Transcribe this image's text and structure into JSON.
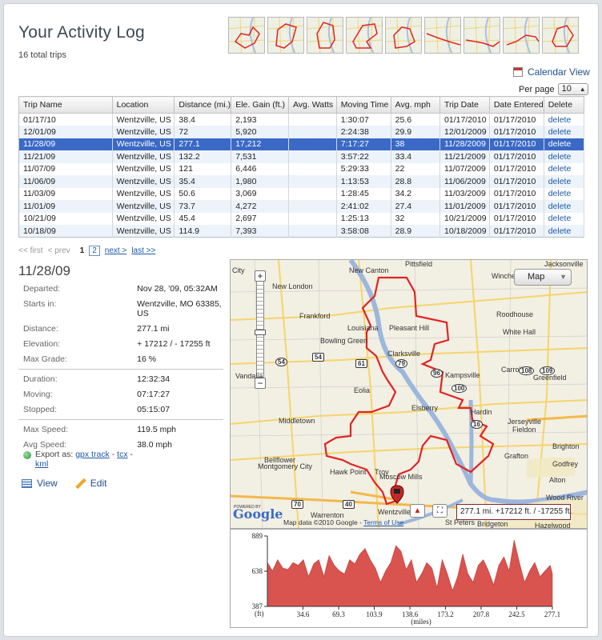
{
  "header": {
    "title": "Your Activity Log",
    "subtitle": "16 total trips",
    "calendar_view": "Calendar View",
    "per_page_label": "Per page",
    "per_page_value": "10",
    "thumbnail_count": 9
  },
  "table": {
    "columns": [
      "Trip Name",
      "Location",
      "Distance (mi.)",
      "Ele. Gain (ft.)",
      "Avg. Watts",
      "Moving Time",
      "Avg. mph",
      "Trip Date",
      "Date Entered",
      "Delete"
    ],
    "rows": [
      [
        "01/17/10",
        "Wentzville, US",
        "38.4",
        "2,193",
        "",
        "1:30:07",
        "25.6",
        "01/17/2010",
        "01/17/2010",
        "delete"
      ],
      [
        "12/01/09",
        "Wentzville, US",
        "72",
        "5,920",
        "",
        "2:24:38",
        "29.9",
        "12/01/2009",
        "01/17/2010",
        "delete"
      ],
      [
        "11/28/09",
        "Wentzville, US",
        "277.1",
        "17,212",
        "",
        "7:17:27",
        "38",
        "11/28/2009",
        "01/17/2010",
        "delete"
      ],
      [
        "11/21/09",
        "Wentzville, US",
        "132.2",
        "7,531",
        "",
        "3:57:22",
        "33.4",
        "11/21/2009",
        "01/17/2010",
        "delete"
      ],
      [
        "11/07/09",
        "Wentzville, US",
        "121",
        "6,446",
        "",
        "5:29:33",
        "22",
        "11/07/2009",
        "01/17/2010",
        "delete"
      ],
      [
        "11/06/09",
        "Wentzville, US",
        "35.4",
        "1,980",
        "",
        "1:13:53",
        "28.8",
        "11/06/2009",
        "01/17/2010",
        "delete"
      ],
      [
        "11/03/09",
        "Wentzville, US",
        "50.6",
        "3,069",
        "",
        "1:28:45",
        "34.2",
        "11/03/2009",
        "01/17/2010",
        "delete"
      ],
      [
        "11/01/09",
        "Wentzville, US",
        "73.7",
        "4,272",
        "",
        "2:41:02",
        "27.4",
        "11/01/2009",
        "01/17/2010",
        "delete"
      ],
      [
        "10/21/09",
        "Wentzville, US",
        "45.4",
        "2,697",
        "",
        "1:25:13",
        "32",
        "10/21/2009",
        "01/17/2010",
        "delete"
      ],
      [
        "10/18/09",
        "Wentzville, US",
        "114.9",
        "7,393",
        "",
        "3:58:08",
        "28.9",
        "10/18/2009",
        "01/17/2010",
        "delete"
      ]
    ],
    "selected_index": 2
  },
  "pager": {
    "first": "<< first",
    "prev": "< prev",
    "current": "1",
    "page2": "2",
    "next": "next >",
    "last": "last >>"
  },
  "detail": {
    "title": "11/28/09",
    "departed_label": "Departed:",
    "departed": "Nov 28, '09, 05:32AM",
    "starts_label": "Starts in:",
    "starts": "Wentzville, MO 63385, US",
    "distance_label": "Distance:",
    "distance": "277.1 mi",
    "elevation_label": "Elevation:",
    "elevation": "+ 17212 / - 17255 ft",
    "maxgrade_label": "Max Grade:",
    "maxgrade": "16 %",
    "duration_label": "Duration:",
    "duration": "12:32:34",
    "moving_label": "Moving:",
    "moving": "07:17:27",
    "stopped_label": "Stopped:",
    "stopped": "05:15:07",
    "maxspeed_label": "Max Speed:",
    "maxspeed": "119.5 mph",
    "avgspeed_label": "Avg Speed:",
    "avgspeed": "38.0 mph",
    "export_label": "Export as:",
    "export_gpx": "gpx track",
    "export_tcx": "tcx",
    "export_kml": "kml",
    "view": "View",
    "edit": "Edit"
  },
  "map": {
    "map_type": "Map",
    "stats": "277.1 mi. +17212 ft. / -17255 ft.",
    "attribution": "Map data ©2010 Google",
    "terms": "Terms of Use",
    "google": "Google",
    "powered": "POWERED BY",
    "labels": [
      "City",
      "New Canton",
      "Pittsfield",
      "Jacksonville",
      "Winchester",
      "New London",
      "Frankford",
      "Louisiana",
      "Pleasant Hill",
      "Roodhouse",
      "White Hall",
      "Bowling Green",
      "Clarksville",
      "Kampsville",
      "Carrollton",
      "Greenfield",
      "Vandalia",
      "Eolia",
      "Hardin",
      "Elsberry",
      "Jerseyville",
      "Fieldon",
      "Middletown",
      "Brighton",
      "Bellflower",
      "Montgomery City",
      "Hawk Point",
      "Troy",
      "Moscow Mills",
      "Godfrey",
      "Alton",
      "Wood River",
      "Warrenton",
      "Wentzville",
      "St Peters",
      "Bridgeton",
      "Hazelwood",
      "Grafton"
    ],
    "shields": [
      "54",
      "54",
      "61",
      "79",
      "96",
      "100",
      "16",
      "108",
      "109",
      "40",
      "70",
      "40"
    ]
  },
  "chart_data": {
    "type": "area",
    "title": "",
    "xlabel": "(miles)",
    "ylabel": "(ft)",
    "ylim": [
      387,
      889
    ],
    "yticks": [
      "889",
      "638",
      "387"
    ],
    "xlim": [
      0,
      277.1
    ],
    "xticks": [
      "34.6",
      "69.3",
      "103.9",
      "138.6",
      "173.2",
      "207.8",
      "242.5",
      "277.1"
    ],
    "color": "#d9534f",
    "x": [
      0,
      5,
      10,
      15,
      20,
      25,
      30,
      35,
      40,
      45,
      50,
      55,
      60,
      65,
      70,
      75,
      80,
      85,
      90,
      95,
      100,
      105,
      110,
      115,
      120,
      125,
      130,
      135,
      140,
      145,
      150,
      155,
      160,
      165,
      170,
      175,
      180,
      185,
      190,
      195,
      200,
      205,
      210,
      215,
      220,
      225,
      230,
      235,
      240,
      245,
      250,
      255,
      260,
      265,
      270,
      275,
      277.1
    ],
    "y": [
      700,
      640,
      720,
      660,
      650,
      700,
      680,
      720,
      600,
      690,
      720,
      600,
      750,
      680,
      640,
      620,
      720,
      690,
      760,
      800,
      720,
      660,
      560,
      640,
      700,
      820,
      780,
      650,
      720,
      560,
      620,
      700,
      660,
      520,
      720,
      620,
      500,
      600,
      760,
      620,
      560,
      680,
      720,
      640,
      540,
      680,
      740,
      640,
      860,
      700,
      560,
      640,
      700,
      600,
      640,
      680,
      620
    ]
  }
}
